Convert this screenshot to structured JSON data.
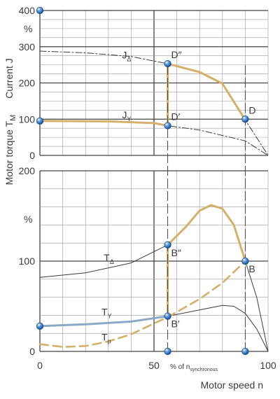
{
  "chart_data": [
    {
      "type": "line",
      "panel": "current",
      "ylabel": "Current J",
      "ylabel_unit": "%",
      "xlim": [
        0,
        100
      ],
      "ylim": [
        0,
        400
      ],
      "y_ticks": [
        "0",
        "100",
        "200",
        "300",
        "400"
      ],
      "series": [
        {
          "name": "JΔ",
          "style": "dash-dot",
          "x": [
            0,
            20,
            40,
            56,
            70,
            80,
            90,
            100
          ],
          "y": [
            288,
            283,
            273,
            253,
            230,
            198,
            98,
            0
          ]
        },
        {
          "name": "JY",
          "style": "dash-dot",
          "x": [
            0,
            30,
            50,
            56,
            70,
            90,
            100
          ],
          "y": [
            95,
            94,
            89,
            82,
            70,
            40,
            0
          ]
        },
        {
          "name": "",
          "style": "operating-path",
          "x": [
            0,
            30,
            50,
            56,
            56,
            70,
            80,
            90
          ],
          "y": [
            95,
            94,
            89,
            82,
            253,
            230,
            198,
            98
          ]
        }
      ],
      "points": [
        {
          "label": "D″",
          "x": 56,
          "y": 253
        },
        {
          "label": "D′",
          "x": 56,
          "y": 82
        },
        {
          "label": "D",
          "x": 90,
          "y": 100
        }
      ]
    },
    {
      "type": "line",
      "panel": "torque",
      "ylabel": "Motor torque T",
      "ylabel_sub": "M",
      "ylabel_unit": "%",
      "xlabel": "Motor speed  n",
      "xlim": [
        0,
        100
      ],
      "ylim": [
        0,
        200
      ],
      "y_ticks": [
        "0",
        "100",
        "200"
      ],
      "x_ticks": [
        "0",
        "50",
        "100"
      ],
      "x_unit_note": "% of n",
      "x_unit_note_sub": "synchronous",
      "series": [
        {
          "name": "TΔ",
          "style": "solid-thin",
          "x": [
            0,
            20,
            40,
            56,
            64,
            70,
            75,
            80,
            85,
            90,
            95,
            100
          ],
          "y": [
            82,
            87,
            98,
            118,
            138,
            156,
            162,
            158,
            140,
            100,
            60,
            0
          ]
        },
        {
          "name": "TY",
          "style": "solid-thin",
          "x": [
            0,
            20,
            40,
            56,
            70,
            80,
            85,
            90,
            95,
            100
          ],
          "y": [
            28,
            30,
            33,
            39,
            46,
            51,
            50,
            42,
            25,
            0
          ]
        },
        {
          "name": "Tp",
          "style": "dashed",
          "x": [
            0,
            10,
            20,
            30,
            40,
            50,
            56,
            70,
            80,
            90
          ],
          "y": [
            8,
            5,
            6,
            11,
            19,
            31,
            38,
            58,
            76,
            100
          ]
        },
        {
          "name": "",
          "style": "blue-segment",
          "x": [
            0,
            20,
            40,
            56
          ],
          "y": [
            28,
            30,
            33,
            39
          ]
        },
        {
          "name": "",
          "style": "operating-path",
          "x": [
            56,
            56,
            64,
            70,
            75,
            80,
            85,
            90
          ],
          "y": [
            39,
            118,
            138,
            156,
            162,
            158,
            140,
            100
          ]
        }
      ],
      "points": [
        {
          "label": "B″",
          "x": 56,
          "y": 118
        },
        {
          "label": "B′",
          "x": 56,
          "y": 39
        },
        {
          "label": "B",
          "x": 90,
          "y": 100
        }
      ]
    }
  ],
  "colors": {
    "gold": "#d4b06a",
    "blue": "#8aa9c8",
    "ink": "#3a3a3a",
    "grid": "#9a9a9a",
    "marker": "#1f5fae"
  }
}
